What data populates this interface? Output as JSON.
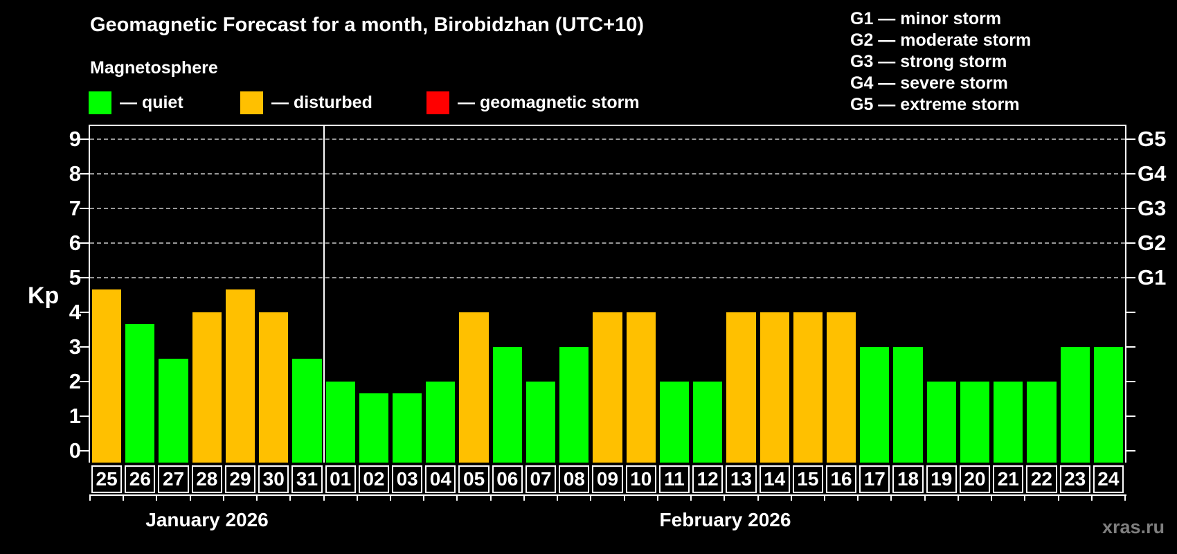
{
  "title": "Geomagnetic Forecast for a month, Birobidzhan (UTC+10)",
  "subtitle": "Magnetosphere",
  "legend": {
    "items": [
      {
        "status": "quiet",
        "label": "— quiet",
        "color": "#00ff00"
      },
      {
        "status": "disturbed",
        "label": "— disturbed",
        "color": "#ffc000"
      },
      {
        "status": "storm",
        "label": "— geomagnetic storm",
        "color": "#ff0000"
      }
    ]
  },
  "storm_scale_legend": [
    "G1 — minor storm",
    "G2 — moderate storm",
    "G3 — strong storm",
    "G4 — severe storm",
    "G5 — extreme storm"
  ],
  "y_axis": {
    "label": "Kp",
    "ticks": [
      0,
      1,
      2,
      3,
      4,
      5,
      6,
      7,
      8,
      9
    ]
  },
  "months": [
    {
      "label": "January 2026",
      "days": 7
    },
    {
      "label": "February 2026",
      "days": 24
    }
  ],
  "watermark": "xras.ru",
  "chart_data": {
    "type": "bar",
    "title": "Geomagnetic Forecast for a month, Birobidzhan (UTC+10)",
    "xlabel": "",
    "ylabel": "Kp",
    "ylim": [
      0,
      9.4
    ],
    "grid": "dashed horizontal lines at Kp 5-9 only",
    "gridlines_at": [
      5,
      6,
      7,
      8,
      9
    ],
    "right_axis_labels": [
      {
        "label": "G1",
        "kp": 5
      },
      {
        "label": "G2",
        "kp": 6
      },
      {
        "label": "G3",
        "kp": 7
      },
      {
        "label": "G4",
        "kp": 8
      },
      {
        "label": "G5",
        "kp": 9
      }
    ],
    "month_boundary_index": 7,
    "categories": [
      "Jan 25",
      "Jan 26",
      "Jan 27",
      "Jan 28",
      "Jan 29",
      "Jan 30",
      "Jan 31",
      "Feb 01",
      "Feb 02",
      "Feb 03",
      "Feb 04",
      "Feb 05",
      "Feb 06",
      "Feb 07",
      "Feb 08",
      "Feb 09",
      "Feb 10",
      "Feb 11",
      "Feb 12",
      "Feb 13",
      "Feb 14",
      "Feb 15",
      "Feb 16",
      "Feb 17",
      "Feb 18",
      "Feb 19",
      "Feb 20",
      "Feb 21",
      "Feb 22",
      "Feb 23",
      "Feb 24"
    ],
    "day_labels": [
      "25",
      "26",
      "27",
      "28",
      "29",
      "30",
      "31",
      "01",
      "02",
      "03",
      "04",
      "05",
      "06",
      "07",
      "08",
      "09",
      "10",
      "11",
      "12",
      "13",
      "14",
      "15",
      "16",
      "17",
      "18",
      "19",
      "20",
      "21",
      "22",
      "23",
      "24"
    ],
    "values": [
      4.67,
      3.67,
      2.67,
      4,
      4.67,
      4,
      2.67,
      2,
      1.67,
      1.67,
      2,
      4,
      3,
      2,
      3,
      4,
      4,
      2,
      2,
      4,
      4,
      4,
      4,
      3,
      3,
      2,
      2,
      2,
      2,
      3,
      3
    ],
    "statuses": [
      "disturbed",
      "quiet",
      "quiet",
      "disturbed",
      "disturbed",
      "disturbed",
      "quiet",
      "quiet",
      "quiet",
      "quiet",
      "quiet",
      "disturbed",
      "quiet",
      "quiet",
      "quiet",
      "disturbed",
      "disturbed",
      "quiet",
      "quiet",
      "disturbed",
      "disturbed",
      "disturbed",
      "disturbed",
      "quiet",
      "quiet",
      "quiet",
      "quiet",
      "quiet",
      "quiet",
      "quiet",
      "quiet"
    ]
  }
}
